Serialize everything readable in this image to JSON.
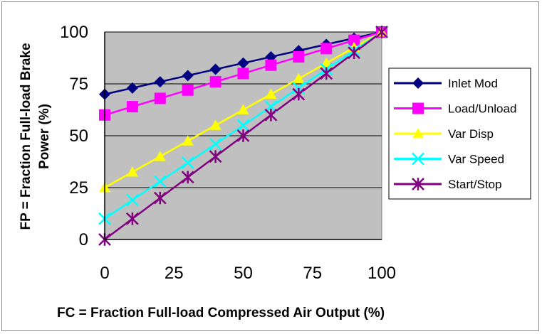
{
  "chart_data": {
    "type": "line",
    "x": [
      0,
      10,
      20,
      30,
      40,
      50,
      60,
      70,
      80,
      90,
      100
    ],
    "xticks": [
      "0",
      "25",
      "50",
      "75",
      "100"
    ],
    "yticks": [
      "0",
      "25",
      "50",
      "75",
      "100"
    ],
    "xlim": [
      0,
      100
    ],
    "ylim": [
      0,
      100
    ],
    "xlabel": "FC = Fraction Full-load Compressed Air Output (%)",
    "ylabel_line1": "FP = Fraction Full-load Brake",
    "ylabel_line2": "Power (%)",
    "grid": "horizontal",
    "plot_background": "#c0c0c0",
    "legend_position": "right",
    "series": [
      {
        "name": "Inlet Mod",
        "color": "#000080",
        "marker": "diamond",
        "values": [
          70,
          73,
          76,
          79,
          82,
          85,
          88,
          91,
          94,
          97,
          100
        ]
      },
      {
        "name": "Load/Unload",
        "color": "#ff00ff",
        "marker": "square",
        "values": [
          60,
          64,
          68,
          72,
          76,
          80,
          84,
          88,
          92,
          96,
          100
        ]
      },
      {
        "name": "Var Disp",
        "color": "#ffff00",
        "marker": "triangle",
        "values": [
          25,
          32.5,
          40,
          47.5,
          55,
          62.5,
          70,
          77.5,
          85,
          92.5,
          100
        ]
      },
      {
        "name": "Var Speed",
        "color": "#00ffff",
        "marker": "x",
        "values": [
          10,
          19,
          28,
          37,
          46,
          55,
          64,
          73,
          82,
          91,
          100
        ]
      },
      {
        "name": "Start/Stop",
        "color": "#800080",
        "marker": "star",
        "values": [
          0,
          10,
          20,
          30,
          40,
          50,
          60,
          70,
          80,
          90,
          100
        ]
      }
    ]
  }
}
